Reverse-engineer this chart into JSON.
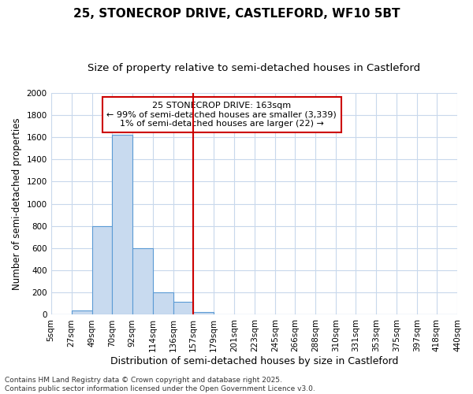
{
  "title": "25, STONECROP DRIVE, CASTLEFORD, WF10 5BT",
  "subtitle": "Size of property relative to semi-detached houses in Castleford",
  "xlabel": "Distribution of semi-detached houses by size in Castleford",
  "ylabel": "Number of semi-detached properties",
  "bin_edges": [
    5,
    27,
    49,
    70,
    92,
    114,
    136,
    157,
    179,
    201,
    223,
    245,
    266,
    288,
    310,
    331,
    353,
    375,
    397,
    418,
    440
  ],
  "bin_labels": [
    "5sqm",
    "27sqm",
    "49sqm",
    "70sqm",
    "92sqm",
    "114sqm",
    "136sqm",
    "157sqm",
    "179sqm",
    "201sqm",
    "223sqm",
    "245sqm",
    "266sqm",
    "288sqm",
    "310sqm",
    "331sqm",
    "353sqm",
    "375sqm",
    "397sqm",
    "418sqm",
    "440sqm"
  ],
  "counts": [
    0,
    40,
    800,
    1620,
    600,
    205,
    115,
    25,
    0,
    0,
    0,
    0,
    0,
    0,
    0,
    0,
    0,
    0,
    0,
    0
  ],
  "bar_color": "#c8daef",
  "bar_edge_color": "#5b9bd5",
  "vline_x": 157,
  "vline_color": "#cc0000",
  "ylim": [
    0,
    2000
  ],
  "yticks": [
    0,
    200,
    400,
    600,
    800,
    1000,
    1200,
    1400,
    1600,
    1800,
    2000
  ],
  "annotation_text": "25 STONECROP DRIVE: 163sqm\n← 99% of semi-detached houses are smaller (3,339)\n1% of semi-detached houses are larger (22) →",
  "annotation_box_color": "#ffffff",
  "annotation_box_edge": "#cc0000",
  "background_color": "#ffffff",
  "grid_color": "#c8d8ec",
  "footer_text": "Contains HM Land Registry data © Crown copyright and database right 2025.\nContains public sector information licensed under the Open Government Licence v3.0.",
  "title_fontsize": 11,
  "subtitle_fontsize": 9.5,
  "ylabel_fontsize": 8.5,
  "xlabel_fontsize": 9,
  "tick_fontsize": 7.5,
  "footer_fontsize": 6.5,
  "annot_fontsize": 8
}
